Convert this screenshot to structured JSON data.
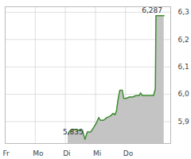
{
  "chart_data": {
    "type": "area",
    "x": [
      2.09,
      2.14,
      2.25,
      2.36,
      2.47,
      2.57,
      2.65,
      2.73,
      2.84,
      2.95,
      3.03,
      3.11,
      3.16,
      3.27,
      3.38,
      3.49,
      3.59,
      3.65,
      3.7,
      3.75,
      3.81,
      3.89,
      3.94,
      4.02,
      4.13,
      4.24,
      4.34,
      4.45,
      4.5,
      4.56,
      4.77,
      4.93,
      4.99,
      5.01,
      5.28
    ],
    "values": [
      5.855,
      5.865,
      5.872,
      5.87,
      5.868,
      5.868,
      5.835,
      5.862,
      5.862,
      5.88,
      5.895,
      5.915,
      5.905,
      5.905,
      5.915,
      5.92,
      5.93,
      5.925,
      5.94,
      5.98,
      6.015,
      6.015,
      5.985,
      5.985,
      5.99,
      5.99,
      5.995,
      5.995,
      6.005,
      5.995,
      5.995,
      5.995,
      6.02,
      6.287,
      6.287
    ],
    "color": "#3d8f2f",
    "xlim": [
      0,
      5.5
    ],
    "xticks": [
      {
        "value": 0,
        "label": "Fr"
      },
      {
        "value": 1,
        "label": "Mo"
      },
      {
        "value": 2,
        "label": "Di"
      },
      {
        "value": 3,
        "label": "Mi"
      },
      {
        "value": 4,
        "label": "Do"
      }
    ],
    "ylim": [
      5.82,
      6.32
    ],
    "yticks": [
      {
        "value": 5.9,
        "label": "5,9"
      },
      {
        "value": 6.0,
        "label": "6,0"
      },
      {
        "value": 6.1,
        "label": "6,1"
      },
      {
        "value": 6.2,
        "label": "6,2"
      },
      {
        "value": 6.3,
        "label": "6,3"
      }
    ],
    "grid": true,
    "annotations": [
      {
        "text": "6,287",
        "x": 5.01,
        "y": 6.287
      },
      {
        "text": "5,835",
        "x": 2.65,
        "y": 5.835
      }
    ]
  }
}
